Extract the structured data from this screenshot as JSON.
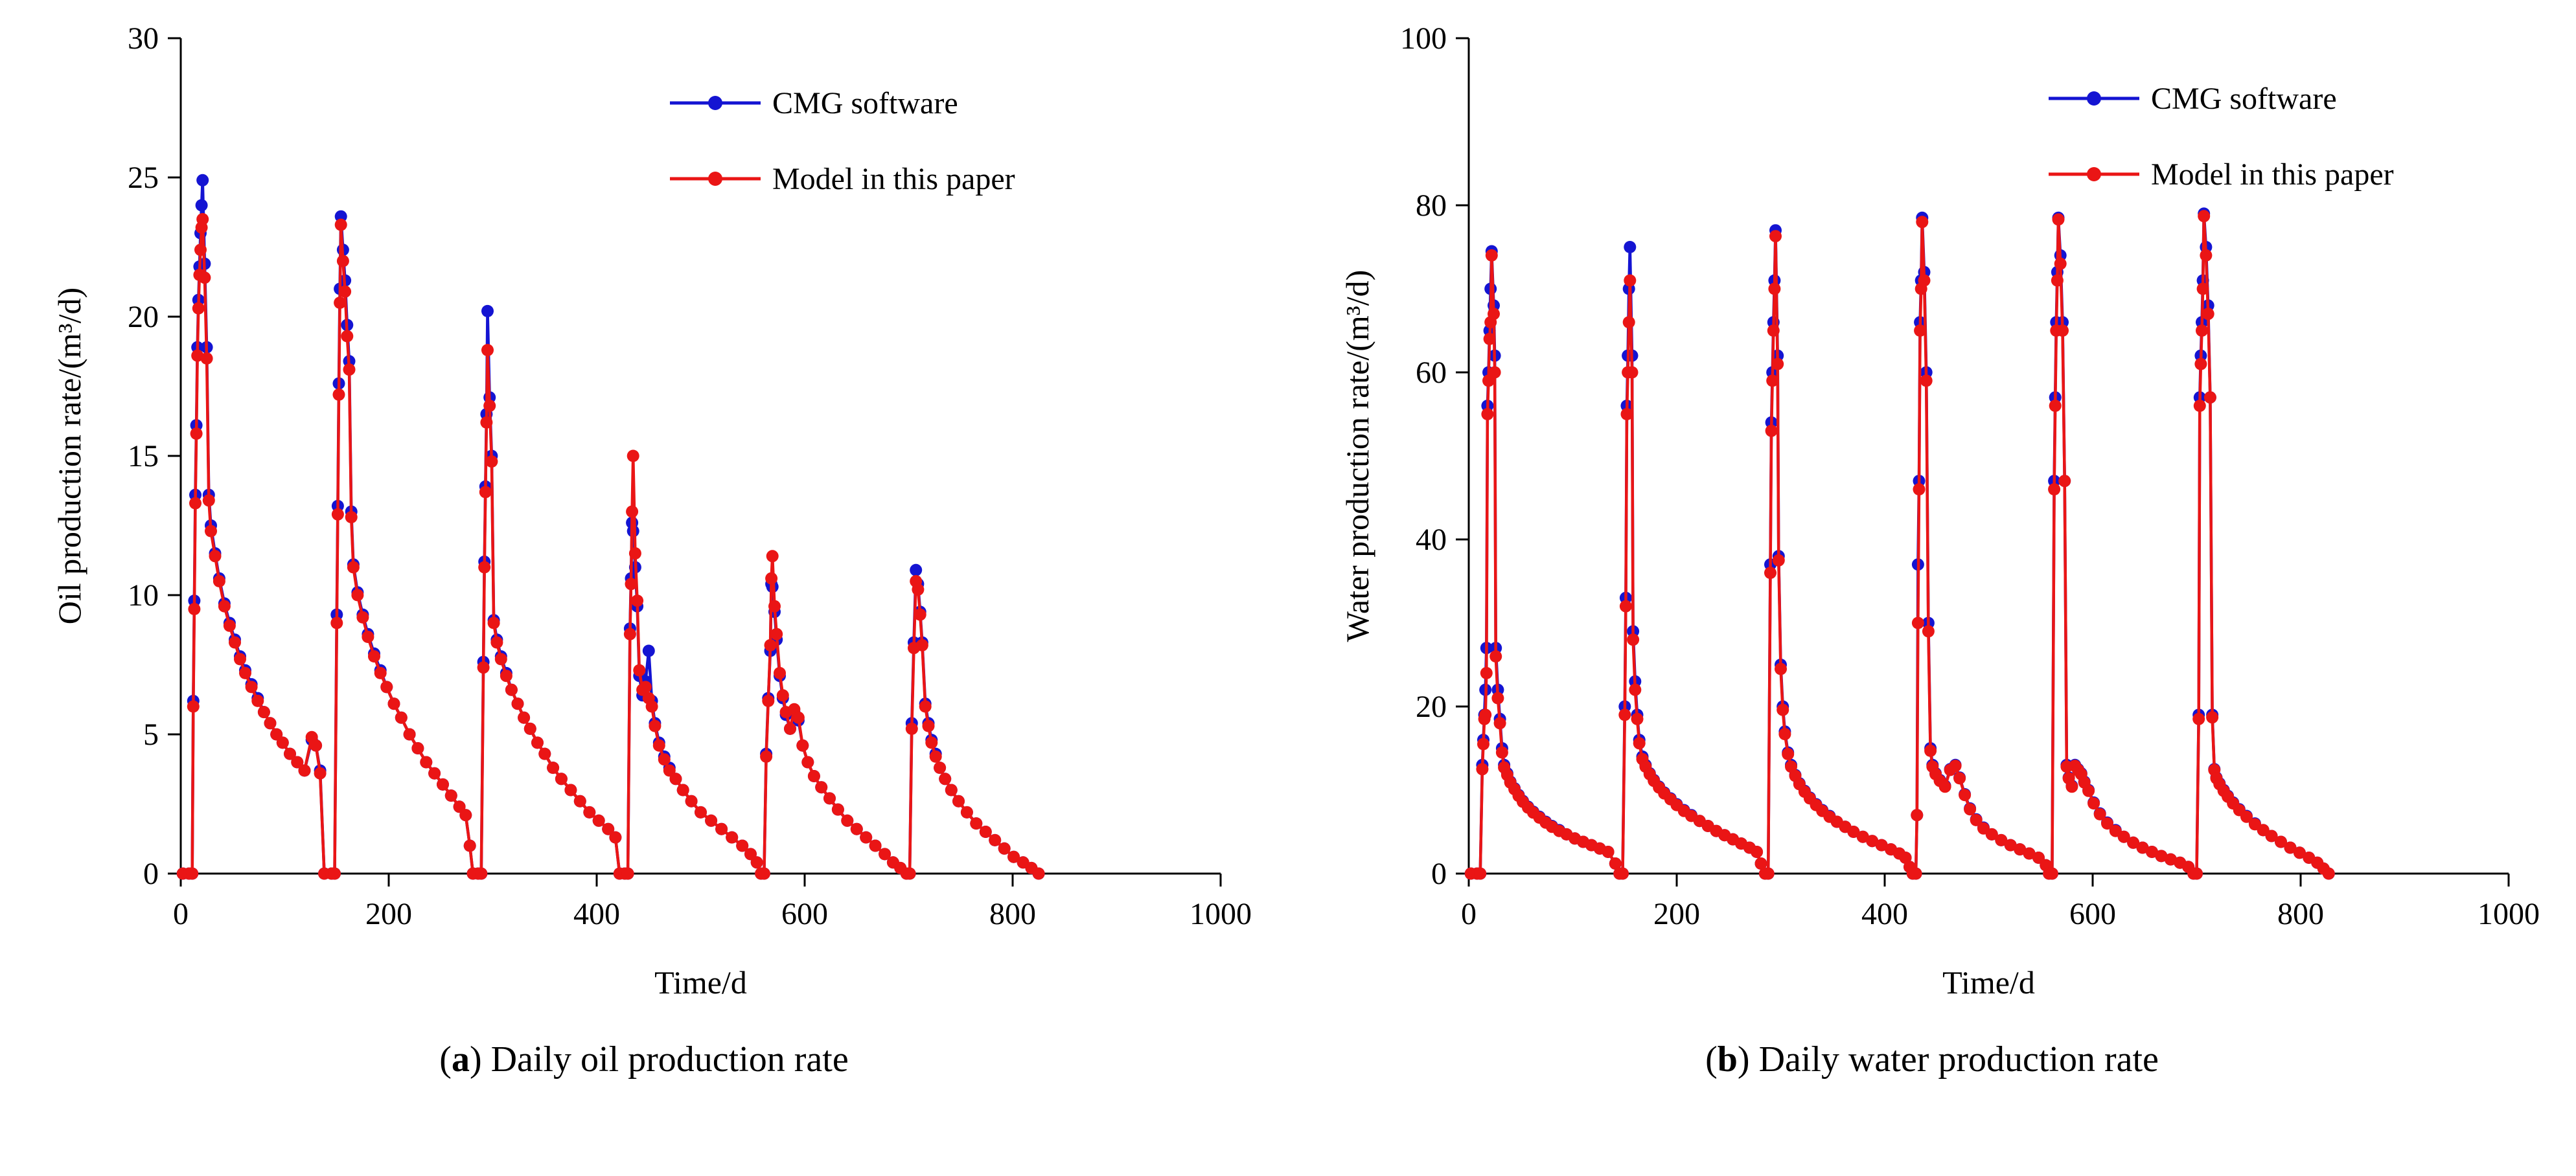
{
  "page": {
    "background": "#ffffff",
    "text_color": "#000000"
  },
  "chart_data": [
    {
      "id": "oil",
      "type": "line",
      "caption": {
        "open": "(",
        "label": "a",
        "close": ")",
        "text": " Daily oil production rate"
      },
      "xlabel": "Time/d",
      "ylabel": "Oil production rate/(m³/d)",
      "xlim": [
        0,
        1000
      ],
      "xtick_step": 200,
      "ylim": [
        0,
        30
      ],
      "ytick_step": 5,
      "grid": false,
      "legend_position": "top-center-inside",
      "x": [
        2,
        8,
        11,
        12,
        13,
        14,
        15,
        16,
        17,
        18,
        19,
        20,
        21,
        23,
        25,
        27,
        29,
        33,
        37,
        42,
        47,
        52,
        57,
        62,
        68,
        74,
        80,
        86,
        92,
        98,
        105,
        112,
        119,
        126,
        130,
        134,
        138,
        145,
        148,
        150,
        151,
        152,
        153,
        154,
        156,
        158,
        160,
        162,
        164,
        166,
        170,
        175,
        180,
        186,
        192,
        198,
        205,
        212,
        220,
        228,
        236,
        244,
        252,
        260,
        268,
        274,
        278,
        281,
        286,
        289,
        291,
        292,
        293,
        294,
        295,
        297,
        299,
        301,
        304,
        308,
        313,
        318,
        324,
        330,
        336,
        343,
        350,
        358,
        366,
        375,
        384,
        393,
        402,
        411,
        418,
        422,
        427,
        430,
        432,
        433,
        434,
        435,
        437,
        439,
        441,
        444,
        447,
        450,
        453,
        456,
        460,
        465,
        470,
        476,
        483,
        491,
        500,
        510,
        520,
        530,
        540,
        548,
        554,
        558,
        561,
        563,
        565,
        567,
        568,
        569,
        571,
        573,
        576,
        579,
        582,
        586,
        590,
        594,
        598,
        603,
        609,
        616,
        624,
        632,
        641,
        650,
        659,
        668,
        677,
        685,
        692,
        698,
        701,
        703,
        705,
        707,
        709,
        711,
        713,
        716,
        719,
        722,
        726,
        730,
        735,
        741,
        748,
        756,
        765,
        774,
        783,
        792,
        801,
        810,
        818,
        825
      ],
      "series": [
        {
          "name": "CMG software",
          "color": "#1414d2",
          "marker": "circle",
          "values": [
            0,
            0,
            0,
            6.2,
            9.8,
            13.6,
            16.1,
            18.9,
            20.6,
            21.8,
            23.0,
            24.0,
            24.9,
            21.9,
            18.9,
            13.6,
            12.5,
            11.5,
            10.6,
            9.7,
            9.0,
            8.4,
            7.8,
            7.3,
            6.8,
            6.3,
            5.8,
            5.4,
            5.0,
            4.7,
            4.3,
            4.0,
            3.7,
            4.8,
            4.6,
            3.7,
            0,
            0,
            0,
            9.3,
            13.2,
            17.6,
            21.0,
            23.6,
            22.4,
            21.3,
            19.7,
            18.4,
            13.0,
            11.1,
            10.1,
            9.3,
            8.6,
            7.9,
            7.3,
            6.7,
            6.1,
            5.6,
            5.0,
            4.5,
            4.0,
            3.6,
            3.2,
            2.8,
            2.4,
            2.1,
            1.0,
            0,
            0,
            0,
            7.6,
            11.2,
            13.9,
            16.5,
            20.2,
            17.1,
            15.0,
            9.1,
            8.4,
            7.8,
            7.2,
            6.6,
            6.1,
            5.6,
            5.2,
            4.7,
            4.3,
            3.8,
            3.4,
            3.0,
            2.6,
            2.2,
            1.9,
            1.6,
            1.3,
            0,
            0,
            0,
            8.8,
            10.6,
            12.6,
            12.3,
            11.0,
            9.6,
            7.1,
            6.4,
            6.9,
            8.0,
            6.2,
            5.4,
            4.7,
            4.2,
            3.8,
            3.4,
            3.0,
            2.6,
            2.2,
            1.9,
            1.6,
            1.3,
            1.0,
            0.7,
            0.4,
            0,
            0,
            4.3,
            6.3,
            8.0,
            10.4,
            10.3,
            9.4,
            8.4,
            7.1,
            6.3,
            5.7,
            5.2,
            5.8,
            5.5,
            4.6,
            4.0,
            3.5,
            3.1,
            2.7,
            2.3,
            1.9,
            1.6,
            1.3,
            1.0,
            0.7,
            0.4,
            0.2,
            0,
            0,
            5.4,
            8.3,
            10.9,
            10.4,
            9.4,
            8.3,
            6.1,
            5.4,
            4.8,
            4.3,
            3.8,
            3.4,
            3.0,
            2.6,
            2.2,
            1.8,
            1.5,
            1.2,
            0.9,
            0.6,
            0.4,
            0.2,
            0
          ]
        },
        {
          "name": "Model in this paper",
          "color": "#ea1515",
          "marker": "circle",
          "values": [
            0,
            0,
            0,
            6.0,
            9.5,
            13.3,
            15.8,
            18.6,
            20.3,
            21.5,
            22.4,
            23.2,
            23.5,
            21.4,
            18.5,
            13.4,
            12.3,
            11.4,
            10.5,
            9.6,
            8.9,
            8.3,
            7.7,
            7.2,
            6.7,
            6.2,
            5.8,
            5.4,
            5.0,
            4.7,
            4.3,
            4.0,
            3.7,
            4.9,
            4.6,
            3.6,
            0,
            0,
            0,
            9.0,
            12.9,
            17.2,
            20.5,
            23.3,
            22.0,
            20.9,
            19.3,
            18.1,
            12.8,
            11.0,
            10.0,
            9.2,
            8.5,
            7.8,
            7.2,
            6.7,
            6.1,
            5.6,
            5.0,
            4.5,
            4.0,
            3.6,
            3.2,
            2.8,
            2.4,
            2.1,
            1.0,
            0,
            0,
            0,
            7.4,
            11.0,
            13.7,
            16.2,
            18.8,
            16.8,
            14.8,
            9.0,
            8.3,
            7.7,
            7.1,
            6.6,
            6.1,
            5.6,
            5.2,
            4.7,
            4.3,
            3.8,
            3.4,
            3.0,
            2.6,
            2.2,
            1.9,
            1.6,
            1.3,
            0,
            0,
            0,
            8.6,
            10.4,
            13.0,
            15.0,
            11.5,
            9.8,
            7.3,
            6.6,
            6.7,
            6.3,
            6.0,
            5.3,
            4.6,
            4.1,
            3.7,
            3.4,
            3.0,
            2.6,
            2.2,
            1.9,
            1.6,
            1.3,
            1.0,
            0.7,
            0.4,
            0,
            0,
            4.2,
            6.2,
            8.2,
            10.6,
            11.4,
            9.6,
            8.6,
            7.2,
            6.4,
            5.8,
            5.2,
            5.9,
            5.6,
            4.6,
            4.0,
            3.5,
            3.1,
            2.7,
            2.3,
            1.9,
            1.6,
            1.3,
            1.0,
            0.7,
            0.4,
            0.2,
            0,
            0,
            5.2,
            8.1,
            10.5,
            10.2,
            9.3,
            8.2,
            6.0,
            5.3,
            4.7,
            4.2,
            3.8,
            3.4,
            3.0,
            2.6,
            2.2,
            1.8,
            1.5,
            1.2,
            0.9,
            0.6,
            0.4,
            0.2,
            0
          ]
        }
      ]
    },
    {
      "id": "water",
      "type": "line",
      "caption": {
        "open": "(",
        "label": "b",
        "close": ")",
        "text": " Daily water production rate"
      },
      "xlabel": "Time/d",
      "ylabel": "Water production rate/(m³/d)",
      "xlim": [
        0,
        1000
      ],
      "xtick_step": 200,
      "ylim": [
        0,
        100
      ],
      "ytick_step": 20,
      "grid": false,
      "legend_position": "top-right-inside",
      "x": [
        2,
        8,
        11,
        13,
        14,
        15,
        16,
        17,
        18,
        19,
        20,
        21,
        22,
        24,
        25,
        26,
        28,
        30,
        32,
        34,
        37,
        40,
        44,
        48,
        52,
        57,
        62,
        68,
        74,
        80,
        87,
        94,
        102,
        110,
        118,
        126,
        134,
        141,
        145,
        148,
        150,
        151,
        152,
        153,
        154,
        155,
        157,
        158,
        160,
        162,
        164,
        167,
        170,
        174,
        178,
        183,
        188,
        194,
        200,
        207,
        214,
        222,
        230,
        238,
        246,
        254,
        262,
        270,
        277,
        281,
        285,
        288,
        290,
        291,
        292,
        293,
        294,
        295,
        297,
        298,
        300,
        302,
        304,
        307,
        310,
        314,
        318,
        323,
        328,
        334,
        340,
        347,
        354,
        362,
        370,
        379,
        388,
        397,
        406,
        414,
        420,
        424,
        427,
        430,
        431,
        432,
        433,
        434,
        435,
        436,
        438,
        440,
        442,
        444,
        446,
        449,
        453,
        458,
        463,
        468,
        472,
        477,
        482,
        488,
        495,
        503,
        512,
        521,
        530,
        539,
        548,
        555,
        558,
        561,
        563,
        564,
        565,
        566,
        567,
        569,
        571,
        573,
        575,
        577,
        580,
        583,
        586,
        589,
        592,
        596,
        601,
        607,
        614,
        622,
        630,
        639,
        648,
        657,
        666,
        675,
        684,
        692,
        697,
        700,
        702,
        703,
        704,
        705,
        706,
        707,
        709,
        711,
        713,
        715,
        717,
        719,
        722,
        726,
        730,
        735,
        741,
        748,
        756,
        764,
        772,
        781,
        790,
        799,
        808,
        816,
        822,
        827
      ],
      "series": [
        {
          "name": "CMG software",
          "color": "#1414d2",
          "marker": "circle",
          "values": [
            0,
            0,
            0,
            13,
            16,
            19,
            22,
            27,
            56,
            60,
            65,
            70,
            74.5,
            68,
            62,
            27,
            22,
            18.5,
            15,
            13,
            12,
            11,
            10.2,
            9.4,
            8.7,
            8.0,
            7.4,
            6.8,
            6.2,
            5.7,
            5.2,
            4.7,
            4.2,
            3.8,
            3.4,
            3.0,
            2.6,
            1.2,
            0,
            0,
            20,
            33,
            56,
            62,
            70,
            75,
            62,
            29,
            23,
            19,
            16,
            14,
            13,
            12,
            11.2,
            10.4,
            9.7,
            9.0,
            8.3,
            7.6,
            7.0,
            6.3,
            5.7,
            5.1,
            4.6,
            4.1,
            3.6,
            3.1,
            2.6,
            1.2,
            0,
            0,
            37,
            54,
            60,
            66,
            71,
            77,
            62,
            38,
            25,
            20,
            17,
            14.5,
            13,
            11.8,
            10.8,
            9.9,
            9.1,
            8.3,
            7.6,
            6.9,
            6.2,
            5.6,
            5.0,
            4.4,
            3.9,
            3.4,
            2.9,
            2.4,
            1.9,
            0.8,
            0,
            0,
            7,
            37,
            47,
            66,
            71,
            78.5,
            72,
            60,
            30,
            15,
            13,
            12,
            11.2,
            10.5,
            12.5,
            13,
            11.5,
            9.5,
            7.8,
            6.5,
            5.5,
            4.7,
            4.0,
            3.4,
            2.9,
            2.4,
            1.9,
            1.0,
            0,
            0,
            47,
            57,
            66,
            72,
            78.5,
            74,
            66,
            47,
            13,
            11.5,
            10.5,
            13,
            12.5,
            12,
            11,
            10,
            8.5,
            7.2,
            6.1,
            5.2,
            4.4,
            3.7,
            3.1,
            2.6,
            2.1,
            1.7,
            1.3,
            0.8,
            0,
            0,
            19,
            57,
            62,
            66,
            71,
            79,
            75,
            68,
            57,
            19,
            12.5,
            11.5,
            10.8,
            10.0,
            9.3,
            8.5,
            7.7,
            6.9,
            6.0,
            5.2,
            4.5,
            3.8,
            3.1,
            2.5,
            1.9,
            1.3,
            0.6,
            0
          ]
        },
        {
          "name": "Model in this paper",
          "color": "#ea1515",
          "marker": "circle",
          "values": [
            0,
            0,
            0,
            12.5,
            15.5,
            18.5,
            19,
            24,
            55,
            59,
            64,
            66,
            74,
            67,
            60,
            26,
            21,
            18,
            14.5,
            12.7,
            11.8,
            10.9,
            10.1,
            9.3,
            8.6,
            7.9,
            7.3,
            6.7,
            6.1,
            5.6,
            5.1,
            4.7,
            4.2,
            3.8,
            3.4,
            3.0,
            2.6,
            1.2,
            0,
            0,
            19,
            32,
            55,
            60,
            66,
            71,
            60,
            28,
            22,
            18.5,
            15.6,
            13.7,
            12.8,
            11.9,
            11.1,
            10.3,
            9.6,
            8.9,
            8.2,
            7.5,
            6.9,
            6.3,
            5.7,
            5.1,
            4.6,
            4.1,
            3.6,
            3.1,
            2.6,
            1.2,
            0,
            0,
            36,
            53,
            59,
            65,
            70,
            76.3,
            61,
            37.5,
            24.5,
            19.6,
            16.7,
            14.3,
            12.8,
            11.7,
            10.7,
            9.8,
            9.0,
            8.2,
            7.5,
            6.8,
            6.2,
            5.6,
            5.0,
            4.4,
            3.9,
            3.4,
            2.9,
            2.4,
            1.9,
            0.8,
            0,
            0,
            7,
            30,
            46,
            65,
            70,
            78,
            71,
            59,
            29,
            14.7,
            12.8,
            11.9,
            11.1,
            10.4,
            12.4,
            12.9,
            11.4,
            9.4,
            7.7,
            6.4,
            5.4,
            4.7,
            4.0,
            3.4,
            2.9,
            2.4,
            1.9,
            1.0,
            0,
            0,
            46,
            56,
            65,
            71,
            78.3,
            73,
            65,
            47,
            12.8,
            11.4,
            10.4,
            12.9,
            12.4,
            11.9,
            10.9,
            9.9,
            8.4,
            7.1,
            6.0,
            5.1,
            4.4,
            3.7,
            3.1,
            2.6,
            2.1,
            1.7,
            1.3,
            0.8,
            0,
            0,
            18.5,
            56,
            61,
            65,
            70,
            78.7,
            74,
            67,
            57,
            18.7,
            12.4,
            11.4,
            10.7,
            9.9,
            9.2,
            8.4,
            7.6,
            6.8,
            5.9,
            5.2,
            4.5,
            3.8,
            3.1,
            2.5,
            1.9,
            1.3,
            0.6,
            0
          ]
        }
      ]
    }
  ]
}
